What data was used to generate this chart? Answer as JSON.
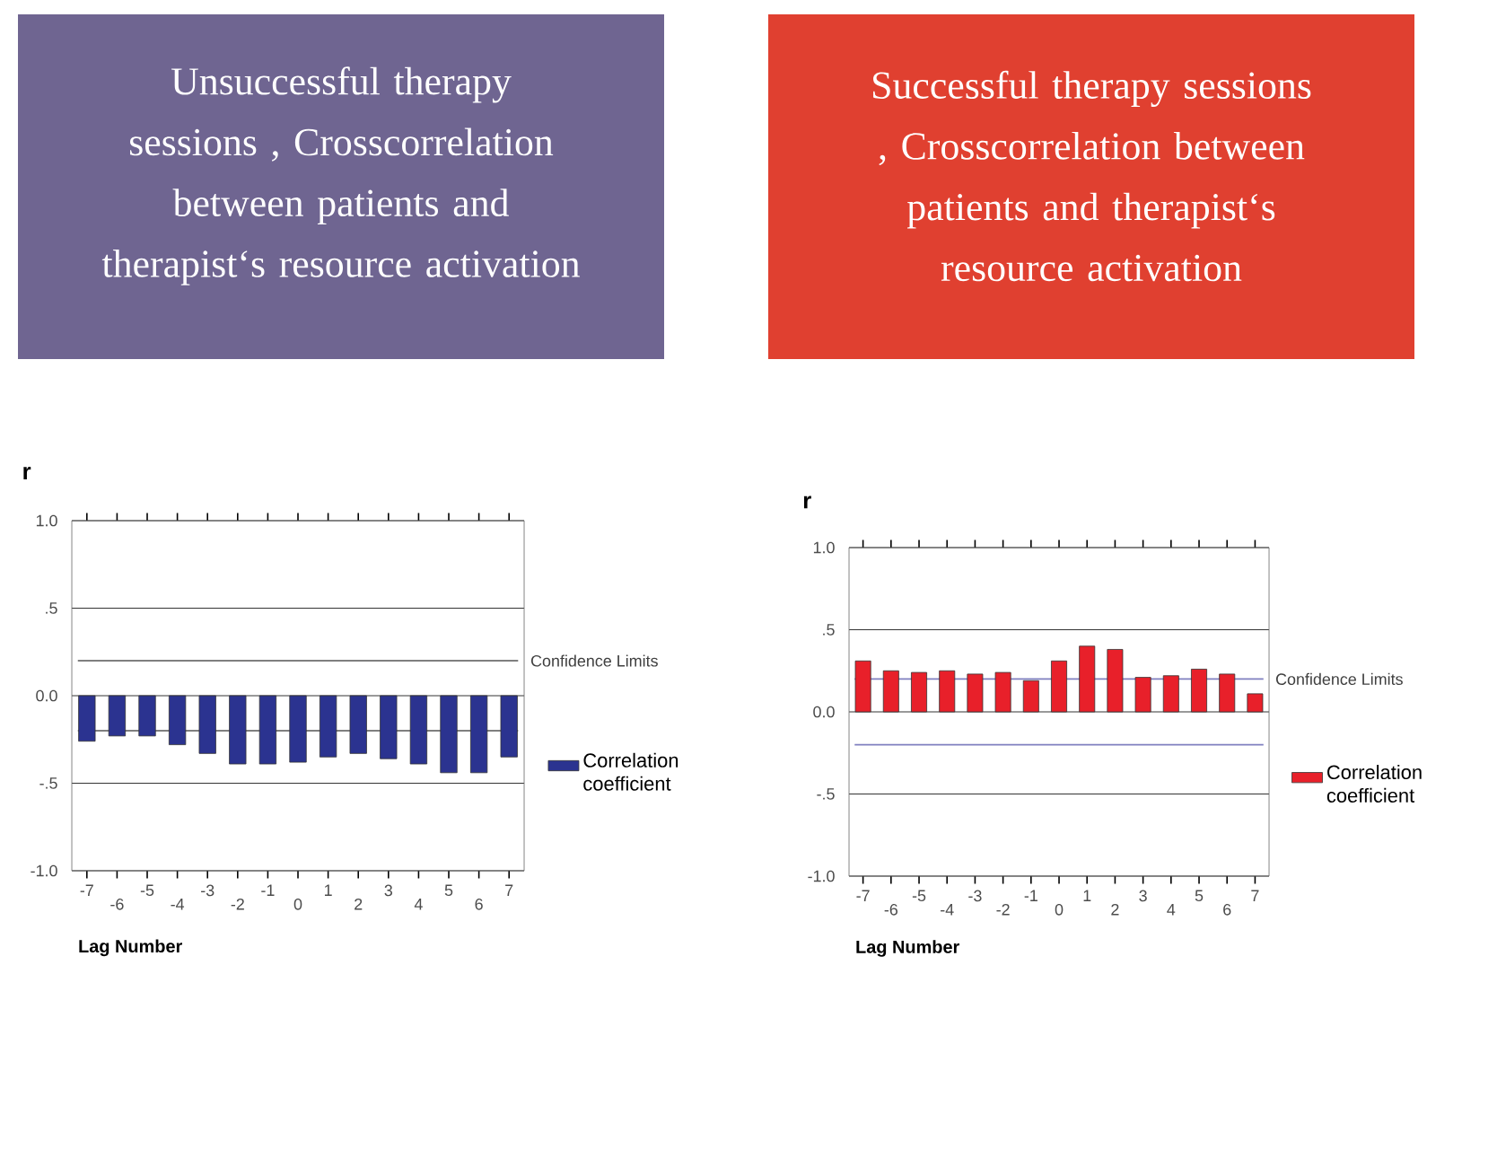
{
  "chart_data": [
    {
      "type": "bar",
      "title": "Unsuccessful therapy sessions , Crosscorrelation between patients and therapist‘s resource activation",
      "xlabel": "Lag Number",
      "ylabel": "r",
      "categories": [
        "-7",
        "-6",
        "-5",
        "-4",
        "-3",
        "-2",
        "-1",
        "0",
        "1",
        "2",
        "3",
        "4",
        "5",
        "6",
        "7"
      ],
      "series": [
        {
          "name": "Correlation coefficient",
          "color": "#2b3390",
          "values": [
            -0.26,
            -0.23,
            -0.23,
            -0.28,
            -0.33,
            -0.39,
            -0.39,
            -0.38,
            -0.35,
            -0.33,
            -0.36,
            -0.39,
            -0.44,
            -0.44,
            -0.35
          ]
        }
      ],
      "ylim": [
        -1.0,
        1.0
      ],
      "yticks": [
        {
          "value": -1.0,
          "label": "-1.0"
        },
        {
          "value": -0.5,
          "label": "-.5"
        },
        {
          "value": 0,
          "label": "0.0"
        },
        {
          "value": 0.5,
          "label": ".5"
        },
        {
          "value": 1.0,
          "label": "1.0"
        }
      ],
      "grid": "y",
      "legend": "right",
      "ref_lines": [
        {
          "axis": "y",
          "value": 0.2,
          "label": "Confidence Limits",
          "color": "#555555"
        },
        {
          "axis": "y",
          "value": -0.2,
          "color": "#555555"
        }
      ]
    },
    {
      "type": "bar",
      "title": "Successful therapy sessions , Crosscorrelation between patients and therapist‘s resource activation",
      "xlabel": "Lag Number",
      "ylabel": "r",
      "categories": [
        "-7",
        "-6",
        "-5",
        "-4",
        "-3",
        "-2",
        "-1",
        "0",
        "1",
        "2",
        "3",
        "4",
        "5",
        "6",
        "7"
      ],
      "series": [
        {
          "name": "Correlation coefficient",
          "color": "#e8202a",
          "values": [
            0.31,
            0.25,
            0.24,
            0.25,
            0.23,
            0.24,
            0.19,
            0.31,
            0.4,
            0.38,
            0.21,
            0.22,
            0.26,
            0.23,
            0.11
          ]
        }
      ],
      "ylim": [
        -1.0,
        1.0
      ],
      "yticks": [
        {
          "value": -1.0,
          "label": "-1.0"
        },
        {
          "value": -0.5,
          "label": "-.5"
        },
        {
          "value": 0,
          "label": "0.0"
        },
        {
          "value": 0.5,
          "label": ".5"
        },
        {
          "value": 1.0,
          "label": "1.0"
        }
      ],
      "grid": "y",
      "legend": "right",
      "ref_lines": [
        {
          "axis": "y",
          "value": 0.2,
          "label": "Confidence Limits",
          "color": "#8080c0"
        },
        {
          "axis": "y",
          "value": -0.2,
          "color": "#8080c0"
        }
      ]
    }
  ]
}
